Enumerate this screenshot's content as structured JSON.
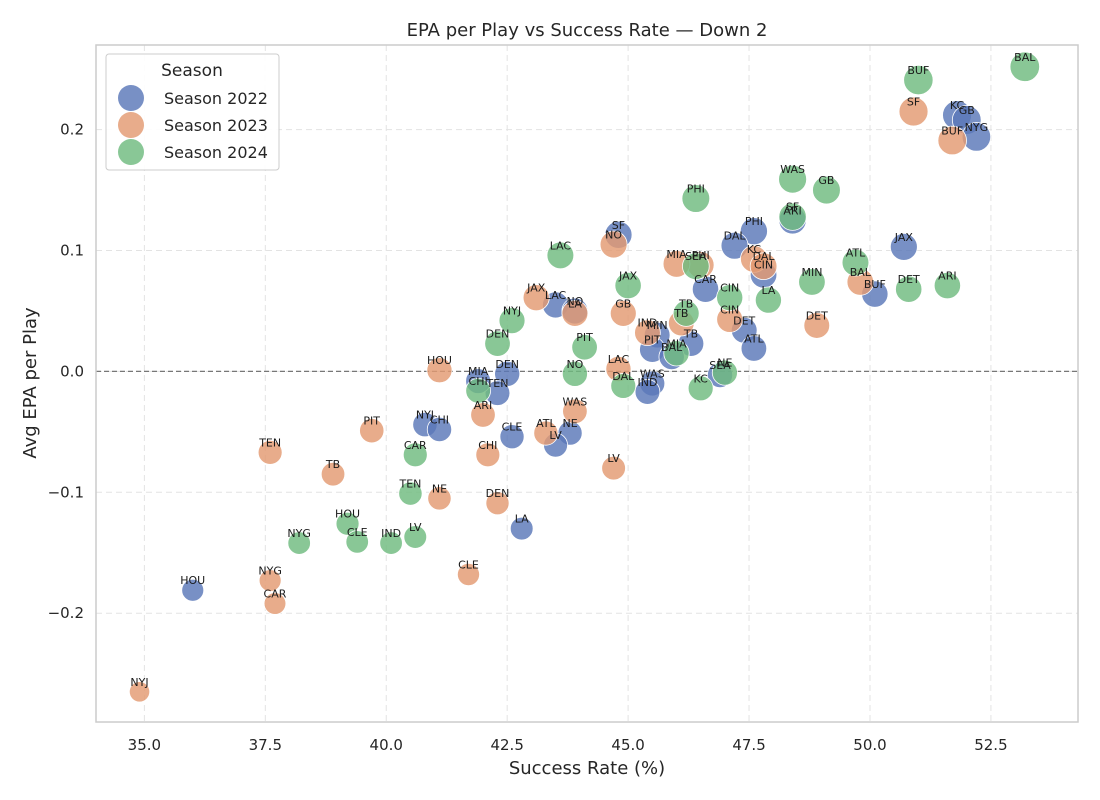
{
  "chart_data": {
    "type": "scatter",
    "title": "EPA per Play vs Success Rate — Down 2",
    "xlabel": "Success Rate (%)",
    "ylabel": "Avg EPA per Play",
    "xlim": [
      34.0,
      54.3
    ],
    "ylim": [
      -0.29,
      0.27
    ],
    "xticks": [
      35.0,
      37.5,
      40.0,
      42.5,
      45.0,
      47.5,
      50.0,
      52.5
    ],
    "xtick_labels": [
      "35.0",
      "37.5",
      "40.0",
      "42.5",
      "45.0",
      "47.5",
      "50.0",
      "52.5"
    ],
    "yticks": [
      -0.2,
      -0.1,
      0.0,
      0.1,
      0.2
    ],
    "ytick_labels": [
      "−0.2",
      "−0.1",
      "0.0",
      "0.1",
      "0.2"
    ],
    "grid": true,
    "reference_line_y": 0.0,
    "legend": {
      "title": "Season",
      "position": "top-left"
    },
    "series": [
      {
        "name": "Season 2022",
        "color": "#5a78b8",
        "points": [
          {
            "team": "KC",
            "x": 51.8,
            "y": 0.212
          },
          {
            "team": "GB",
            "x": 52.0,
            "y": 0.208
          },
          {
            "team": "NYG",
            "x": 52.2,
            "y": 0.194
          },
          {
            "team": "JAX",
            "x": 50.7,
            "y": 0.103
          },
          {
            "team": "BUF",
            "x": 50.1,
            "y": 0.064
          },
          {
            "team": "ARI",
            "x": 48.4,
            "y": 0.125
          },
          {
            "team": "PHI",
            "x": 47.6,
            "y": 0.116
          },
          {
            "team": "DAL",
            "x": 47.2,
            "y": 0.104
          },
          {
            "team": "CIN",
            "x": 47.8,
            "y": 0.08
          },
          {
            "team": "CAR",
            "x": 46.6,
            "y": 0.068
          },
          {
            "team": "DET",
            "x": 47.4,
            "y": 0.034
          },
          {
            "team": "ATL",
            "x": 47.6,
            "y": 0.019
          },
          {
            "team": "TB",
            "x": 46.3,
            "y": 0.023
          },
          {
            "team": "MIN",
            "x": 45.6,
            "y": 0.03
          },
          {
            "team": "PIT",
            "x": 45.5,
            "y": 0.018
          },
          {
            "team": "SF",
            "x": 44.8,
            "y": 0.113
          },
          {
            "team": "LAC",
            "x": 43.5,
            "y": 0.055
          },
          {
            "team": "LA",
            "x": 42.8,
            "y": -0.13
          },
          {
            "team": "NO",
            "x": 43.9,
            "y": 0.05
          },
          {
            "team": "DEN",
            "x": 42.5,
            "y": -0.002
          },
          {
            "team": "WAS",
            "x": 45.5,
            "y": -0.01
          },
          {
            "team": "IND",
            "x": 45.4,
            "y": -0.017
          },
          {
            "team": "NE",
            "x": 43.8,
            "y": -0.051
          },
          {
            "team": "LV",
            "x": 43.5,
            "y": -0.061
          },
          {
            "team": "CLE",
            "x": 42.6,
            "y": -0.054
          },
          {
            "team": "TEN",
            "x": 42.3,
            "y": -0.018
          },
          {
            "team": "MIA",
            "x": 41.9,
            "y": -0.008
          },
          {
            "team": "NYJ",
            "x": 40.8,
            "y": -0.044
          },
          {
            "team": "CHI",
            "x": 41.1,
            "y": -0.048
          },
          {
            "team": "HOU",
            "x": 36.0,
            "y": -0.181
          },
          {
            "team": "SEA",
            "x": 46.9,
            "y": -0.003
          },
          {
            "team": "BAL",
            "x": 45.9,
            "y": 0.012
          }
        ]
      },
      {
        "name": "Season 2023",
        "color": "#e39a72",
        "points": [
          {
            "team": "SF",
            "x": 50.9,
            "y": 0.215
          },
          {
            "team": "BUF",
            "x": 51.7,
            "y": 0.191
          },
          {
            "team": "BAL",
            "x": 49.8,
            "y": 0.074
          },
          {
            "team": "DET",
            "x": 48.9,
            "y": 0.038
          },
          {
            "team": "KC",
            "x": 47.6,
            "y": 0.093
          },
          {
            "team": "DAL",
            "x": 47.8,
            "y": 0.087
          },
          {
            "team": "PHI",
            "x": 46.5,
            "y": 0.088
          },
          {
            "team": "MIA",
            "x": 46.0,
            "y": 0.089
          },
          {
            "team": "CIN",
            "x": 47.1,
            "y": 0.043
          },
          {
            "team": "NO",
            "x": 44.7,
            "y": 0.105
          },
          {
            "team": "JAX",
            "x": 43.1,
            "y": 0.061
          },
          {
            "team": "LA",
            "x": 43.9,
            "y": 0.048
          },
          {
            "team": "GB",
            "x": 44.9,
            "y": 0.048
          },
          {
            "team": "IND",
            "x": 45.4,
            "y": 0.032
          },
          {
            "team": "TB",
            "x": 46.1,
            "y": 0.04
          },
          {
            "team": "LAC",
            "x": 44.8,
            "y": 0.002
          },
          {
            "team": "HOU",
            "x": 41.1,
            "y": 0.001
          },
          {
            "team": "WAS",
            "x": 43.9,
            "y": -0.033
          },
          {
            "team": "ATL",
            "x": 43.3,
            "y": -0.051
          },
          {
            "team": "ARI",
            "x": 42.0,
            "y": -0.036
          },
          {
            "team": "CHI",
            "x": 42.1,
            "y": -0.069
          },
          {
            "team": "LV",
            "x": 44.7,
            "y": -0.08
          },
          {
            "team": "PIT",
            "x": 39.7,
            "y": -0.049
          },
          {
            "team": "NE",
            "x": 41.1,
            "y": -0.105
          },
          {
            "team": "DEN",
            "x": 42.3,
            "y": -0.109
          },
          {
            "team": "TB2",
            "x": 38.9,
            "y": -0.085
          },
          {
            "team": "TEN",
            "x": 37.6,
            "y": -0.067
          },
          {
            "team": "CLE",
            "x": 41.7,
            "y": -0.168
          },
          {
            "team": "NYG",
            "x": 37.6,
            "y": -0.173
          },
          {
            "team": "CAR",
            "x": 37.7,
            "y": -0.192
          },
          {
            "team": "NYJ",
            "x": 34.9,
            "y": -0.265
          }
        ]
      },
      {
        "name": "Season 2024",
        "color": "#6fbb7f",
        "points": [
          {
            "team": "BAL",
            "x": 53.2,
            "y": 0.252
          },
          {
            "team": "BUF",
            "x": 51.0,
            "y": 0.241
          },
          {
            "team": "WAS",
            "x": 48.4,
            "y": 0.159
          },
          {
            "team": "GB",
            "x": 49.1,
            "y": 0.15
          },
          {
            "team": "PHI",
            "x": 46.4,
            "y": 0.143
          },
          {
            "team": "SF",
            "x": 48.4,
            "y": 0.128
          },
          {
            "team": "ATL",
            "x": 49.7,
            "y": 0.09
          },
          {
            "team": "MIN",
            "x": 48.8,
            "y": 0.074
          },
          {
            "team": "DET",
            "x": 50.8,
            "y": 0.068
          },
          {
            "team": "ARI",
            "x": 51.6,
            "y": 0.071
          },
          {
            "team": "LA",
            "x": 47.9,
            "y": 0.059
          },
          {
            "team": "CIN",
            "x": 47.1,
            "y": 0.061
          },
          {
            "team": "SEA",
            "x": 46.4,
            "y": 0.087
          },
          {
            "team": "JAX",
            "x": 45.0,
            "y": 0.071
          },
          {
            "team": "TB",
            "x": 46.2,
            "y": 0.048
          },
          {
            "team": "LAC",
            "x": 43.6,
            "y": 0.096
          },
          {
            "team": "NYJ",
            "x": 42.6,
            "y": 0.042
          },
          {
            "team": "DEN",
            "x": 42.3,
            "y": 0.023
          },
          {
            "team": "PIT",
            "x": 44.1,
            "y": 0.02
          },
          {
            "team": "NO",
            "x": 43.9,
            "y": -0.002
          },
          {
            "team": "MIA",
            "x": 46.0,
            "y": 0.015
          },
          {
            "team": "NE",
            "x": 47.0,
            "y": -0.001
          },
          {
            "team": "DAL",
            "x": 44.9,
            "y": -0.012
          },
          {
            "team": "KC",
            "x": 46.5,
            "y": -0.014
          },
          {
            "team": "CHI",
            "x": 41.9,
            "y": -0.016
          },
          {
            "team": "CAR",
            "x": 40.6,
            "y": -0.069
          },
          {
            "team": "TEN",
            "x": 40.5,
            "y": -0.101
          },
          {
            "team": "HOU",
            "x": 39.2,
            "y": -0.126
          },
          {
            "team": "CLE",
            "x": 39.4,
            "y": -0.141
          },
          {
            "team": "IND",
            "x": 40.1,
            "y": -0.142
          },
          {
            "team": "LV",
            "x": 40.6,
            "y": -0.137
          },
          {
            "team": "NYG",
            "x": 38.2,
            "y": -0.142
          }
        ]
      }
    ]
  }
}
